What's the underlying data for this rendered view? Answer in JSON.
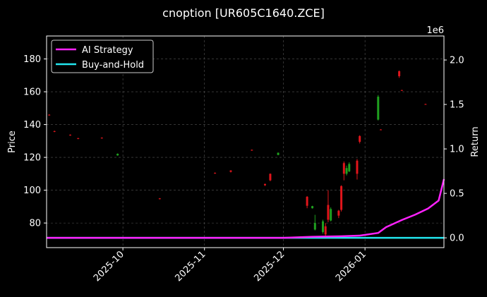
{
  "chart_data": {
    "type": "candlestick",
    "title": "cnoption [UR605C1640.ZCE]",
    "ylabel_left": "Price",
    "ylabel_right": "Return",
    "right_axis_offset_text": "1e6",
    "x_ticks": [
      {
        "date": "2025-10-01",
        "label": "2025-10"
      },
      {
        "date": "2025-11-01",
        "label": "2025-11"
      },
      {
        "date": "2025-12-01",
        "label": "2025-12"
      },
      {
        "date": "2026-01-01",
        "label": "2026-01"
      }
    ],
    "x_range": [
      "2025-09-02",
      "2026-01-31"
    ],
    "y_left_ticks": [
      80,
      100,
      120,
      140,
      160,
      180
    ],
    "ylim_left": [
      65,
      194
    ],
    "y_right_ticks": [
      {
        "value": 0.0,
        "label": "0.0"
      },
      {
        "value": 0.5,
        "label": "0.5"
      },
      {
        "value": 1.0,
        "label": "1.0"
      },
      {
        "value": 1.5,
        "label": "1.5"
      },
      {
        "value": 2.0,
        "label": "2.0"
      }
    ],
    "ylim_right": [
      -0.11,
      2.27
    ],
    "grid": true,
    "legend": {
      "placement": "top-left",
      "entries": [
        {
          "label": "AI Strategy",
          "color": "#ff22ff"
        },
        {
          "label": "Buy-and-Hold",
          "color": "#22e5ee"
        }
      ]
    },
    "candles": [
      {
        "date": "2025-09-03",
        "open": 146,
        "high": 146.3,
        "low": 145.5,
        "close": 145.7
      },
      {
        "date": "2025-09-05",
        "open": 136,
        "high": 136.3,
        "low": 135.4,
        "close": 135.6
      },
      {
        "date": "2025-09-11",
        "open": 133.8,
        "high": 134,
        "low": 133.2,
        "close": 133.4
      },
      {
        "date": "2025-09-14",
        "open": 131.7,
        "high": 131.9,
        "low": 131.1,
        "close": 131.3
      },
      {
        "date": "2025-09-23",
        "open": 132,
        "high": 132.2,
        "low": 131.4,
        "close": 131.6
      },
      {
        "date": "2025-09-29",
        "open": 121.2,
        "high": 122.4,
        "low": 121,
        "close": 122.2
      },
      {
        "date": "2025-10-15",
        "open": 95,
        "high": 95.2,
        "low": 94.4,
        "close": 94.6
      },
      {
        "date": "2025-11-05",
        "open": 110.6,
        "high": 110.8,
        "low": 110,
        "close": 110.2
      },
      {
        "date": "2025-11-11",
        "open": 112,
        "high": 112.2,
        "low": 110.8,
        "close": 111.2
      },
      {
        "date": "2025-11-19",
        "open": 124.6,
        "high": 124.8,
        "low": 124,
        "close": 124.2
      },
      {
        "date": "2025-11-24",
        "open": 103.8,
        "high": 104,
        "low": 102.6,
        "close": 103
      },
      {
        "date": "2025-11-26",
        "open": 110,
        "high": 110.2,
        "low": 105.5,
        "close": 106
      },
      {
        "date": "2025-11-29",
        "open": 121.5,
        "high": 123,
        "low": 121.3,
        "close": 122.8
      },
      {
        "date": "2025-12-10",
        "open": 96,
        "high": 96.4,
        "low": 89,
        "close": 90.5
      },
      {
        "date": "2025-12-12",
        "open": 89,
        "high": 90.5,
        "low": 88.8,
        "close": 90.3
      },
      {
        "date": "2025-12-13",
        "open": 76,
        "high": 85,
        "low": 75.5,
        "close": 80
      },
      {
        "date": "2025-12-16",
        "open": 74.5,
        "high": 82,
        "low": 73.5,
        "close": 81
      },
      {
        "date": "2025-12-17",
        "open": 78,
        "high": 80,
        "low": 70.5,
        "close": 73
      },
      {
        "date": "2025-12-18",
        "open": 91,
        "high": 100,
        "low": 80.5,
        "close": 82
      },
      {
        "date": "2025-12-19",
        "open": 81.5,
        "high": 89.5,
        "low": 81,
        "close": 88.5
      },
      {
        "date": "2025-12-22",
        "open": 87.5,
        "high": 88,
        "low": 83,
        "close": 84.5
      },
      {
        "date": "2025-12-23",
        "open": 102.5,
        "high": 103,
        "low": 87,
        "close": 88
      },
      {
        "date": "2025-12-24",
        "open": 116.5,
        "high": 117.5,
        "low": 106,
        "close": 110
      },
      {
        "date": "2025-12-25",
        "open": 110,
        "high": 115,
        "low": 109,
        "close": 113.5
      },
      {
        "date": "2025-12-26",
        "open": 111.5,
        "high": 117,
        "low": 111,
        "close": 116
      },
      {
        "date": "2025-12-29",
        "open": 118,
        "high": 119,
        "low": 106.5,
        "close": 110
      },
      {
        "date": "2025-12-30",
        "open": 133,
        "high": 133.5,
        "low": 128.5,
        "close": 129.5
      },
      {
        "date": "2026-01-06",
        "open": 143,
        "high": 158,
        "low": 142.5,
        "close": 157
      },
      {
        "date": "2026-01-07",
        "open": 137,
        "high": 137.2,
        "low": 136.6,
        "close": 136.8
      },
      {
        "date": "2026-01-14",
        "open": 172.5,
        "high": 173,
        "low": 168.5,
        "close": 169.5
      },
      {
        "date": "2026-01-15",
        "open": 161,
        "high": 161.2,
        "low": 160.6,
        "close": 160.8
      },
      {
        "date": "2026-01-24",
        "open": 152.5,
        "high": 152.7,
        "low": 152.1,
        "close": 152.3
      }
    ],
    "series": [
      {
        "name": "AI Strategy",
        "color": "#ff22ff",
        "dates": [
          "2025-09-02",
          "2025-12-01",
          "2025-12-12",
          "2025-12-23",
          "2025-12-30",
          "2026-01-06",
          "2026-01-09",
          "2026-01-15",
          "2026-01-20",
          "2026-01-25",
          "2026-01-29",
          "2026-01-31"
        ],
        "values": [
          0.0,
          0.0,
          0.012,
          0.018,
          0.025,
          0.055,
          0.12,
          0.2,
          0.26,
          0.33,
          0.42,
          0.66
        ]
      },
      {
        "name": "Buy-and-Hold",
        "color": "#22e5ee",
        "dates": [
          "2025-09-02",
          "2026-01-31"
        ],
        "values": [
          0.0,
          0.0
        ]
      }
    ]
  }
}
